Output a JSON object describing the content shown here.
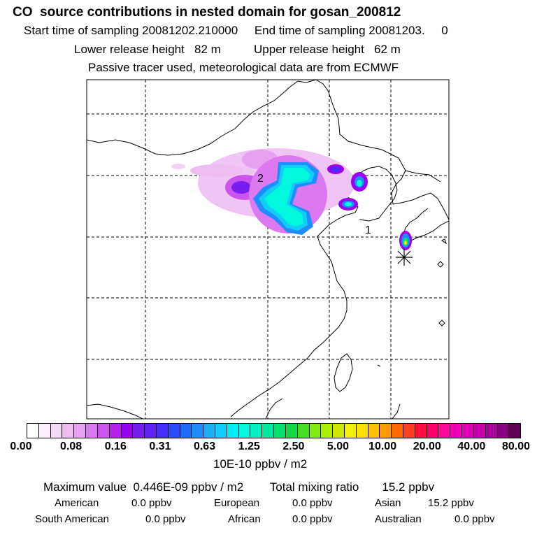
{
  "header": {
    "title": "CO  source contributions in nested domain for gosan_200812",
    "start_label": "Start time of sampling 20081202.210000",
    "end_label": "End time of sampling 20081203.     0",
    "lower_label": "Lower release height   82 m",
    "upper_label": "Upper release height   62 m",
    "note": "Passive tracer used, meteorological data are from ECMWF"
  },
  "map": {
    "label_1": "1",
    "label_2": "2"
  },
  "colorbar": {
    "unit": "10E-10 ppbv / m2",
    "ticks": [
      "0.00",
      "0.08",
      "0.16",
      "0.31",
      "0.63",
      "1.25",
      "2.50",
      "5.00",
      "10.00",
      "20.00",
      "40.00",
      "80.00"
    ],
    "colors": [
      "#ffffff",
      "#fbeefb",
      "#f5d8f7",
      "#eebbf3",
      "#e8a0f0",
      "#dc78f0",
      "#cc55ee",
      "#b522ee",
      "#9900ee",
      "#7a1ef0",
      "#5e22f5",
      "#4430f8",
      "#2a4cfa",
      "#1e6cfc",
      "#1e8cfc",
      "#1eacfc",
      "#12ccfa",
      "#00eef5",
      "#00f8dc",
      "#00f0c0",
      "#00e8a0",
      "#00e070",
      "#12d848",
      "#44e020",
      "#80ee10",
      "#aaf000",
      "#cce800",
      "#f0f000",
      "#ffe000",
      "#ffc000",
      "#ff9a00",
      "#ff6a00",
      "#ff4020",
      "#ff1040",
      "#ff0070",
      "#ff0a9c",
      "#f200b8",
      "#dd00b8",
      "#c600aa",
      "#a8009a",
      "#8a0080",
      "#5e0056"
    ]
  },
  "summary": {
    "max_label": "Maximum value  0.446E-09 ppbv / m2",
    "total_label": "Total mixing ratio       15.2 ppbv"
  },
  "regions": [
    {
      "name": "American",
      "value": "0.0 ppbv"
    },
    {
      "name": "European",
      "value": "0.0 ppbv"
    },
    {
      "name": "Asian",
      "value": "15.2 ppbv"
    },
    {
      "name": "South American",
      "value": "0.0 ppbv"
    },
    {
      "name": "African",
      "value": "0.0 ppbv"
    },
    {
      "name": "Australian",
      "value": "0.0 ppbv"
    }
  ]
}
